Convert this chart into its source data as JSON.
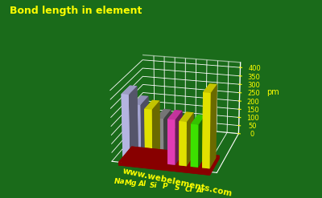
{
  "title": "Bond length in element",
  "ylabel": "pm",
  "website": "www.webelements.com",
  "elements": [
    "Na",
    "Mg",
    "Al",
    "Si",
    "P",
    "S",
    "Cl",
    "Ar"
  ],
  "values": [
    372,
    320,
    300,
    255,
    255,
    250,
    240,
    420
  ],
  "bar_colors": [
    "#ccccff",
    "#bbbbee",
    "#ffff00",
    "#999999",
    "#ff44cc",
    "#ffff00",
    "#44ff00",
    "#ffff00"
  ],
  "background_color": "#1a6b1a",
  "grid_color": "#ffffff",
  "title_color": "#ffff00",
  "label_color": "#ffff00",
  "base_color": "#880000",
  "ylim": [
    0,
    430
  ],
  "yticks": [
    0,
    50,
    100,
    150,
    200,
    250,
    300,
    350,
    400
  ],
  "elev": 20,
  "azim": -75
}
